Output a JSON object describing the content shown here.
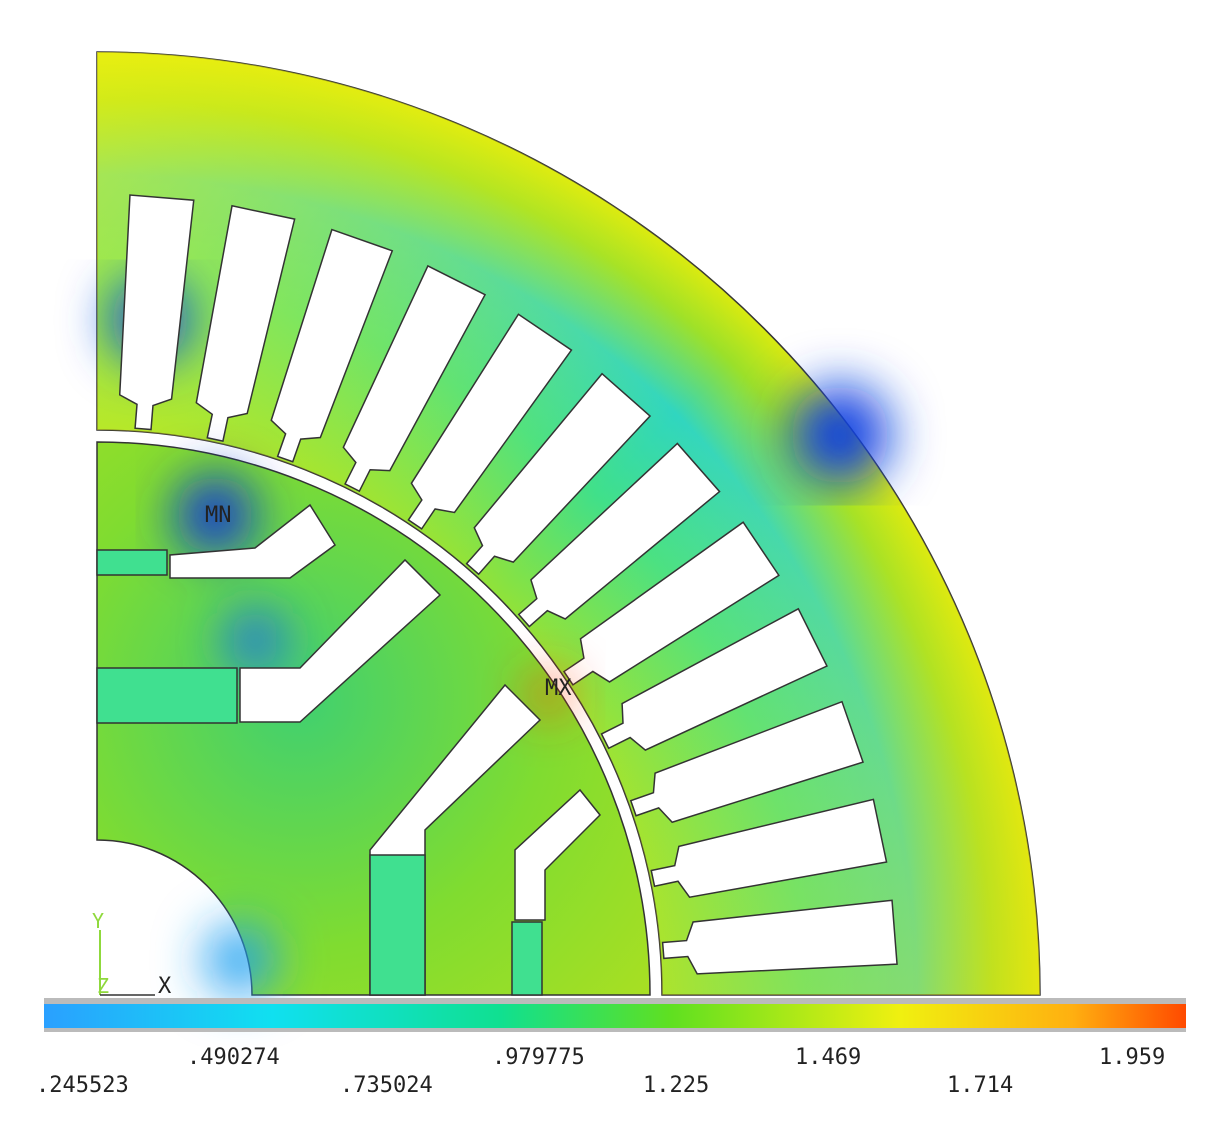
{
  "plot": {
    "min_label": "MN",
    "max_label": "MX",
    "axis_labels": [
      "Y",
      "Z",
      "X"
    ]
  },
  "legend": {
    "top_row": [
      ".490274",
      ".979775",
      "1.469",
      "1.959"
    ],
    "bottom_row": [
      ".245523",
      ".735024",
      "1.225",
      "1.714"
    ]
  }
}
